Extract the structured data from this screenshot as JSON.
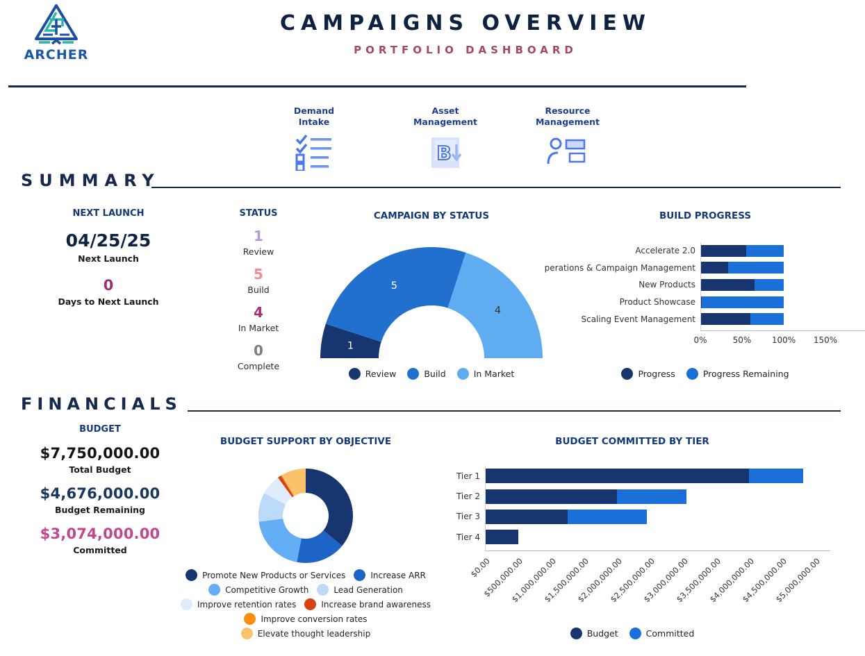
{
  "header": {
    "logo_text": "ARCHER",
    "title": "CAMPAIGNS OVERVIEW",
    "subtitle": "PORTFOLIO DASHBOARD"
  },
  "nav": {
    "items": [
      {
        "id": "demand-intake",
        "icon": "checklist-icon",
        "lines": [
          "Demand",
          "Intake"
        ]
      },
      {
        "id": "asset-management",
        "icon": "asset-b-download-icon",
        "lines": [
          "Asset",
          "Management"
        ]
      },
      {
        "id": "resource-management",
        "icon": "person-list-icon",
        "lines": [
          "Resource",
          "Management"
        ]
      }
    ]
  },
  "summary": {
    "heading": "SUMMARY",
    "next_launch": {
      "header": "NEXT LAUNCH",
      "date": "04/25/25",
      "date_label": "Next Launch",
      "days": "0",
      "days_label": "Days to Next Launch"
    },
    "status": {
      "header": "STATUS",
      "items": [
        {
          "value": "1",
          "label": "Review",
          "color": "#b29cd8"
        },
        {
          "value": "5",
          "label": "Build",
          "color": "#f28b95"
        },
        {
          "value": "4",
          "label": "In Market",
          "color": "#a03477"
        },
        {
          "value": "0",
          "label": "Complete",
          "color": "#7e7e7e"
        }
      ]
    }
  },
  "financials": {
    "heading": "FINANCIALS",
    "budget": {
      "header": "BUDGET",
      "total": "$7,750,000.00",
      "total_label": "Total Budget",
      "remaining": "$4,676,000.00",
      "remaining_label": "Budget Remaining",
      "committed": "$3,074,000.00",
      "committed_label": "Committed"
    }
  },
  "chart_data": [
    {
      "id": "campaign_by_status",
      "type": "donut-half",
      "title": "CAMPAIGN BY STATUS",
      "legend_position": "bottom",
      "series": [
        {
          "name": "Review",
          "value": 1,
          "color": "#17356e"
        },
        {
          "name": "Build",
          "value": 5,
          "color": "#2270ce"
        },
        {
          "name": "In Market",
          "value": 4,
          "color": "#5fadf0"
        }
      ]
    },
    {
      "id": "build_progress",
      "type": "bar-h-stacked",
      "title": "BUILD PROGRESS",
      "categories": [
        "Accelerate 2.0",
        "perations & Campaign Management",
        "New Products",
        "Product Showcase",
        "Scaling Event Management"
      ],
      "series": [
        {
          "name": "Progress",
          "color": "#17356e",
          "values": [
            55,
            33,
            65,
            2,
            60
          ]
        },
        {
          "name": "Progress Remaining",
          "color": "#1b6fd8",
          "values": [
            45,
            67,
            35,
            98,
            40
          ]
        }
      ],
      "xlim": [
        0,
        150
      ],
      "x_ticks": [
        "0%",
        "50%",
        "100%",
        "150%"
      ],
      "x_tick_values": [
        0,
        50,
        100,
        150
      ],
      "legend_position": "bottom"
    },
    {
      "id": "budget_support_by_objective",
      "type": "donut",
      "title": "BUDGET SUPPORT BY OBJECTIVE",
      "legend_position": "bottom",
      "values_unit": "percent_of_ring_estimated",
      "series": [
        {
          "name": "Promote New Products or Services",
          "value": 36,
          "color": "#17356e"
        },
        {
          "name": "Increase ARR",
          "value": 17,
          "color": "#1e63c6"
        },
        {
          "name": "Competitive Growth",
          "value": 20,
          "color": "#63aef5"
        },
        {
          "name": "Lead Generation",
          "value": 10,
          "color": "#bdd9f8"
        },
        {
          "name": "Improve retention rates",
          "value": 7,
          "color": "#deecfb"
        },
        {
          "name": "Increase brand awareness",
          "value": 1.2,
          "color": "#d9420d"
        },
        {
          "name": "Improve conversion rates",
          "value": 0.3,
          "color": "#fb8c10"
        },
        {
          "name": "Elevate thought leadership",
          "value": 8.5,
          "color": "#fac36b"
        }
      ]
    },
    {
      "id": "budget_committed_by_tier",
      "type": "bar-h-stacked",
      "title": "BUDGET COMMITTED BY TIER",
      "categories": [
        "Tier 1",
        "Tier 2",
        "Tier 3",
        "Tier 4"
      ],
      "series": [
        {
          "name": "Budget",
          "color": "#17356e",
          "values": [
            4000000,
            2000000,
            1250000,
            500000
          ]
        },
        {
          "name": "Committed",
          "color": "#1b6fd8",
          "values": [
            820000,
            1054000,
            1200000,
            0
          ]
        }
      ],
      "xlim": [
        0,
        5000000
      ],
      "x_ticks": [
        "$0.00",
        "$500,000.00",
        "$1,000,000.00",
        "$1,500,000.00",
        "$2,000,000.00",
        "$2,500,000.00",
        "$3,000,000.00",
        "$3,500,000.00",
        "$4,000,000.00",
        "$4,500,000.00",
        "$5,000,000.00"
      ],
      "x_tick_values": [
        0,
        500000,
        1000000,
        1500000,
        2000000,
        2500000,
        3000000,
        3500000,
        4000000,
        4500000,
        5000000
      ],
      "legend_position": "bottom"
    }
  ]
}
